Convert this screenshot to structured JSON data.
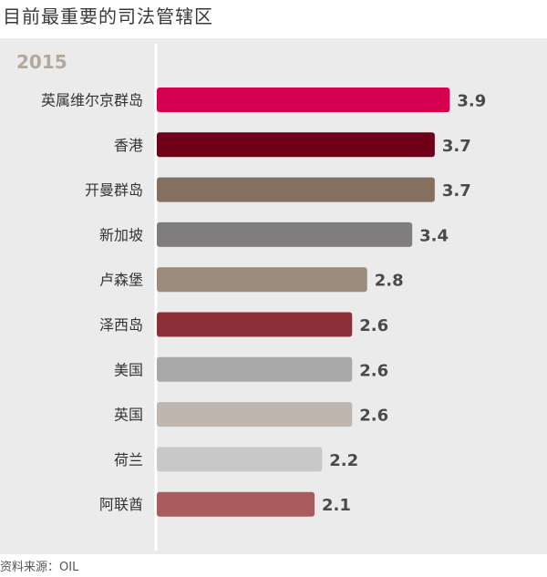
{
  "title": "目前最重要的司法管辖区",
  "source": "资料来源：OIL",
  "chart_data": {
    "type": "bar",
    "orientation": "horizontal",
    "title": "目前最重要的司法管辖区",
    "subtitle": "2015",
    "categories": [
      "英属维尔京群岛",
      "香港",
      "开曼群岛",
      "新加坡",
      "卢森堡",
      "泽西岛",
      "美国",
      "英国",
      "荷兰",
      "阿联酋"
    ],
    "values": [
      3.9,
      3.7,
      3.7,
      3.4,
      2.8,
      2.6,
      2.6,
      2.6,
      2.2,
      2.1
    ],
    "value_labels": [
      "3.9",
      "3.7",
      "3.7",
      "3.4",
      "2.8",
      "2.6",
      "2.6",
      "2.6",
      "2.2",
      "2.1"
    ],
    "colors": [
      "#d4004f",
      "#6e0019",
      "#857060",
      "#7f7d7e",
      "#9a8b7d",
      "#8c2f39",
      "#a9a8a8",
      "#c0b6ad",
      "#c8c8c8",
      "#a85c5e"
    ],
    "xlim": [
      0,
      4.2
    ],
    "grid": false,
    "legend": "none",
    "source": "资料来源：OIL"
  }
}
